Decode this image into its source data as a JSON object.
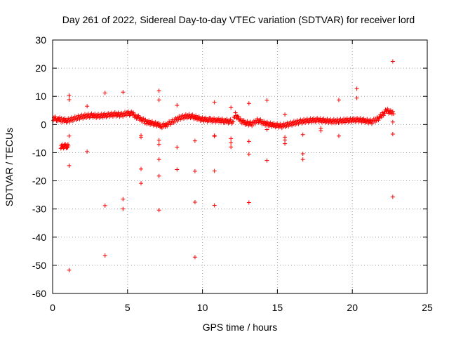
{
  "chart_data": {
    "type": "scatter",
    "title": "Day 261 of 2022, Sidereal Day-to-day VTEC variation (SDTVAR) for receiver lord",
    "xlabel": "GPS time / hours",
    "ylabel": "SDTVAR / TECUs",
    "xlim": [
      0,
      25
    ],
    "ylim": [
      -60,
      30
    ],
    "xticks": [
      0,
      5,
      10,
      15,
      20,
      25
    ],
    "yticks": [
      -60,
      -50,
      -40,
      -30,
      -20,
      -10,
      0,
      10,
      20,
      30
    ],
    "xtick_labels": [
      "0",
      "5",
      "10",
      "15",
      "20",
      "25"
    ],
    "ytick_labels": [
      "-60",
      "-50",
      "-40",
      "-30",
      "-20",
      "-10",
      "0",
      "10",
      "20",
      "30"
    ],
    "grid": true,
    "marker": "+",
    "color": "#ff0000",
    "dense_trace": [
      [
        0.05,
        2.2
      ],
      [
        0.3,
        2.0
      ],
      [
        0.6,
        1.6
      ],
      [
        1.0,
        1.4
      ],
      [
        1.4,
        2.0
      ],
      [
        1.8,
        2.6
      ],
      [
        2.2,
        3.0
      ],
      [
        2.6,
        3.2
      ],
      [
        3.0,
        3.0
      ],
      [
        3.4,
        3.2
      ],
      [
        3.8,
        3.4
      ],
      [
        4.2,
        3.6
      ],
      [
        4.6,
        3.4
      ],
      [
        5.0,
        4.0
      ],
      [
        5.3,
        3.8
      ],
      [
        5.6,
        2.8
      ],
      [
        5.9,
        2.0
      ],
      [
        6.2,
        1.0
      ],
      [
        6.6,
        0.5
      ],
      [
        7.0,
        0.0
      ],
      [
        7.3,
        -0.5
      ],
      [
        7.6,
        0.0
      ],
      [
        8.0,
        1.0
      ],
      [
        8.4,
        2.2
      ],
      [
        8.8,
        2.8
      ],
      [
        9.2,
        3.0
      ],
      [
        9.6,
        2.4
      ],
      [
        10.0,
        1.8
      ],
      [
        10.5,
        1.6
      ],
      [
        11.0,
        1.5
      ],
      [
        11.5,
        1.3
      ],
      [
        12.0,
        1.0
      ],
      [
        12.2,
        3.5
      ],
      [
        12.5,
        1.5
      ],
      [
        12.9,
        0.5
      ],
      [
        13.3,
        0.2
      ],
      [
        13.7,
        1.5
      ],
      [
        14.1,
        0.5
      ],
      [
        14.5,
        0.0
      ],
      [
        14.9,
        -0.3
      ],
      [
        15.3,
        -0.5
      ],
      [
        15.7,
        0.0
      ],
      [
        16.1,
        0.5
      ],
      [
        16.5,
        1.0
      ],
      [
        16.9,
        1.3
      ],
      [
        17.3,
        1.5
      ],
      [
        17.7,
        1.6
      ],
      [
        18.1,
        1.4
      ],
      [
        18.5,
        1.2
      ],
      [
        18.9,
        1.2
      ],
      [
        19.3,
        1.3
      ],
      [
        19.7,
        1.5
      ],
      [
        20.1,
        1.6
      ],
      [
        20.5,
        1.6
      ],
      [
        20.9,
        1.3
      ],
      [
        21.3,
        1.0
      ],
      [
        21.7,
        2.0
      ],
      [
        22.0,
        3.5
      ],
      [
        22.3,
        5.0
      ],
      [
        22.6,
        4.2
      ],
      [
        22.75,
        3.8
      ]
    ],
    "side_trace": [
      [
        0.55,
        -7.8
      ],
      [
        0.7,
        -7.8
      ],
      [
        0.85,
        -7.7
      ],
      [
        1.0,
        -7.8
      ],
      [
        1.05,
        -7.6
      ]
    ],
    "outliers": [
      [
        1.1,
        10.3
      ],
      [
        1.1,
        8.8
      ],
      [
        1.1,
        -4.1
      ],
      [
        1.1,
        -14.6
      ],
      [
        1.1,
        -51.7
      ],
      [
        2.3,
        6.5
      ],
      [
        2.3,
        -9.6
      ],
      [
        3.5,
        11.2
      ],
      [
        3.5,
        -28.8
      ],
      [
        3.5,
        -46.5
      ],
      [
        4.7,
        11.5
      ],
      [
        4.7,
        -26.5
      ],
      [
        4.7,
        -30.0
      ],
      [
        5.9,
        -3.9
      ],
      [
        5.9,
        -4.5
      ],
      [
        5.9,
        -15.8
      ],
      [
        5.9,
        -20.9
      ],
      [
        7.1,
        12.0
      ],
      [
        7.1,
        8.7
      ],
      [
        7.1,
        -5.6
      ],
      [
        7.1,
        -7.1
      ],
      [
        7.1,
        -12.4
      ],
      [
        7.1,
        -18.3
      ],
      [
        7.1,
        -30.4
      ],
      [
        8.3,
        6.8
      ],
      [
        8.3,
        -8.1
      ],
      [
        8.3,
        -16.0
      ],
      [
        9.5,
        -5.8
      ],
      [
        9.5,
        -16.6
      ],
      [
        9.5,
        -27.6
      ],
      [
        9.5,
        -47.1
      ],
      [
        10.8,
        7.9
      ],
      [
        10.8,
        -3.9
      ],
      [
        10.8,
        -4.2
      ],
      [
        10.8,
        -16.5
      ],
      [
        10.8,
        -28.7
      ],
      [
        11.9,
        6.0
      ],
      [
        11.9,
        -5.0
      ],
      [
        11.9,
        -6.5
      ],
      [
        11.9,
        -8.0
      ],
      [
        13.1,
        7.5
      ],
      [
        13.1,
        -6.0
      ],
      [
        13.1,
        -10.5
      ],
      [
        13.1,
        -27.7
      ],
      [
        14.3,
        8.6
      ],
      [
        14.3,
        -1.8
      ],
      [
        14.3,
        -12.8
      ],
      [
        15.5,
        3.5
      ],
      [
        15.5,
        -4.5
      ],
      [
        15.5,
        -5.5
      ],
      [
        15.5,
        -6.8
      ],
      [
        16.7,
        -3.6
      ],
      [
        16.7,
        -10.4
      ],
      [
        16.7,
        -12.4
      ],
      [
        17.9,
        -1.3
      ],
      [
        17.9,
        -2.2
      ],
      [
        19.1,
        8.7
      ],
      [
        19.1,
        -4.1
      ],
      [
        20.3,
        12.7
      ],
      [
        20.3,
        9.4
      ],
      [
        22.7,
        22.4
      ],
      [
        22.7,
        0.9
      ],
      [
        22.7,
        -3.4
      ],
      [
        22.7,
        -25.7
      ]
    ]
  }
}
